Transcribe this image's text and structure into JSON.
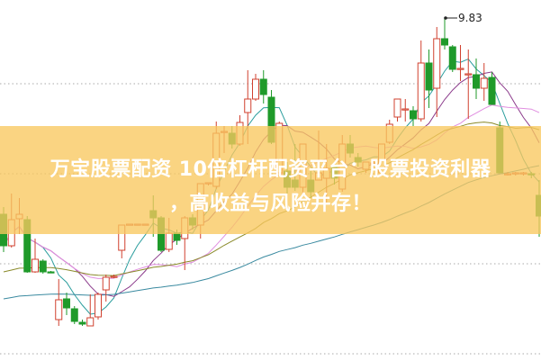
{
  "banner": {
    "line1": "万宝股票配资 10倍杠杆配资平台：股票投资利器",
    "line2": "，高收益与风险并存！"
  },
  "chart_data": {
    "type": "candlestick",
    "title": "",
    "xlabel": "",
    "ylabel": "",
    "grid": "horizontal-dotted",
    "annotations": [
      {
        "label": "9.83",
        "candle_index": 56,
        "price": 9.83
      }
    ],
    "colors": {
      "up": "#d0412f",
      "down": "#1f9a2a",
      "ma": [
        "#2a9d9d",
        "#8b3a8b",
        "#e08ee0",
        "#8a8a2a",
        "#3a8aa0"
      ],
      "banner": "#f8c85f"
    },
    "ohlc": [
      [
        7.65,
        7.73,
        7.23,
        7.3
      ],
      [
        7.3,
        7.88,
        7.28,
        7.59
      ],
      [
        7.6,
        7.83,
        7.43,
        7.65
      ],
      [
        7.59,
        7.63,
        7.0,
        7.01
      ],
      [
        7.01,
        7.38,
        7.0,
        7.15
      ],
      [
        7.13,
        7.15,
        6.99,
        7.01
      ],
      [
        7.01,
        7.02,
        7.0,
        7.0
      ],
      [
        6.48,
        6.93,
        6.41,
        6.7
      ],
      [
        6.71,
        6.78,
        6.53,
        6.61
      ],
      [
        6.6,
        6.63,
        6.43,
        6.46
      ],
      [
        6.45,
        6.48,
        6.41,
        6.43
      ],
      [
        6.41,
        6.76,
        6.41,
        6.5
      ],
      [
        6.51,
        6.78,
        6.48,
        6.76
      ],
      [
        6.81,
        6.98,
        6.68,
        6.95
      ],
      [
        6.95,
        6.98,
        6.94,
        6.96
      ],
      [
        7.25,
        7.53,
        7.16,
        7.53
      ],
      [
        7.54,
        7.54,
        7.54,
        7.54
      ],
      [
        7.54,
        7.54,
        7.54,
        7.54
      ],
      [
        7.54,
        7.54,
        7.54,
        7.54
      ],
      [
        7.69,
        7.86,
        7.4,
        7.61
      ],
      [
        7.61,
        7.63,
        7.23,
        7.25
      ],
      [
        7.26,
        7.61,
        7.23,
        7.44
      ],
      [
        7.44,
        7.48,
        7.31,
        7.36
      ],
      [
        7.38,
        7.63,
        7.03,
        7.61
      ],
      [
        7.61,
        7.65,
        7.48,
        7.53
      ],
      [
        7.53,
        7.99,
        7.38,
        7.99
      ],
      [
        7.99,
        7.99,
        7.97,
        8.0
      ],
      [
        7.96,
        8.68,
        7.93,
        8.55
      ],
      [
        8.56,
        8.63,
        8.33,
        8.57
      ],
      [
        8.55,
        8.63,
        8.38,
        8.43
      ],
      [
        8.43,
        8.75,
        8.41,
        8.67
      ],
      [
        8.78,
        9.25,
        8.43,
        8.93
      ],
      [
        8.93,
        9.21,
        8.91,
        9.15
      ],
      [
        9.15,
        9.25,
        8.88,
        8.98
      ],
      [
        8.95,
        9.03,
        8.43,
        8.45
      ],
      [
        8.11,
        8.68,
        8.08,
        8.66
      ],
      [
        8.13,
        8.23,
        7.88,
        7.95
      ],
      [
        8.03,
        8.43,
        7.91,
        7.95
      ],
      [
        7.95,
        8.43,
        7.88,
        8.43
      ],
      [
        8.03,
        8.13,
        7.83,
        7.9
      ],
      [
        8.03,
        8.58,
        8.03,
        8.11
      ],
      [
        8.05,
        8.43,
        7.78,
        8.16
      ],
      [
        8.18,
        8.23,
        7.98,
        8.05
      ],
      [
        7.93,
        8.53,
        7.9,
        8.43
      ],
      [
        8.43,
        8.53,
        8.28,
        8.33
      ],
      [
        8.28,
        8.33,
        8.18,
        8.23
      ],
      [
        8.15,
        8.23,
        8.11,
        8.23
      ],
      [
        8.21,
        8.25,
        8.18,
        8.22
      ],
      [
        8.11,
        8.43,
        8.08,
        8.43
      ],
      [
        8.45,
        8.7,
        8.43,
        8.65
      ],
      [
        8.73,
        8.93,
        8.68,
        8.93
      ],
      [
        8.81,
        8.93,
        8.68,
        8.82
      ],
      [
        8.8,
        8.85,
        8.63,
        8.71
      ],
      [
        8.71,
        9.58,
        8.68,
        9.33
      ],
      [
        9.33,
        9.48,
        8.83,
        9.03
      ],
      [
        9.05,
        9.73,
        8.73,
        9.6
      ],
      [
        9.6,
        9.83,
        9.48,
        9.53
      ],
      [
        9.51,
        9.53,
        9.23,
        9.26
      ],
      [
        9.26,
        9.53,
        9.13,
        9.27
      ],
      [
        9.2,
        9.48,
        8.71,
        9.21
      ],
      [
        9.2,
        9.38,
        8.93,
        9.05
      ],
      [
        9.05,
        9.33,
        8.91,
        9.16
      ],
      [
        9.17,
        9.23,
        8.87,
        8.87
      ],
      [
        8.61,
        8.68,
        8.11,
        8.11
      ],
      [
        8.1,
        8.12,
        8.08,
        8.1
      ],
      [
        8.1,
        8.12,
        8.08,
        8.11
      ],
      [
        8.1,
        8.12,
        8.08,
        8.11
      ],
      [
        8.1,
        8.12,
        8.05,
        8.09
      ],
      [
        7.86,
        8.03,
        7.4,
        7.63
      ]
    ]
  }
}
